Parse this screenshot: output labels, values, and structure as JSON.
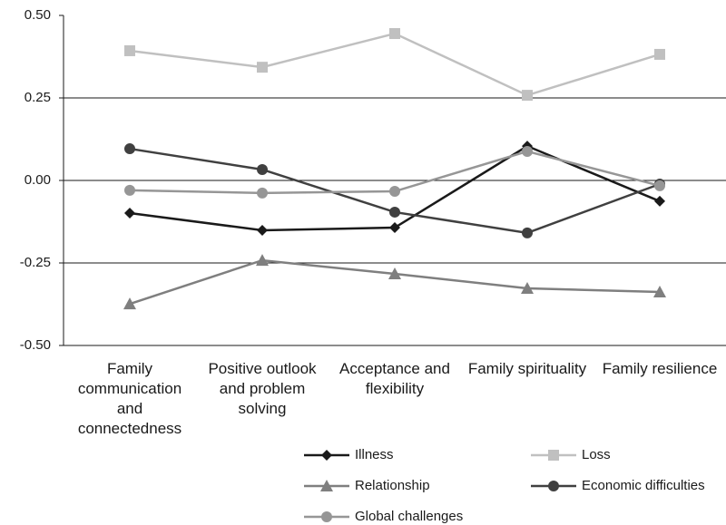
{
  "chart_data": {
    "type": "line",
    "categories": [
      "Family communication and connectedness",
      "Positive outlook and problem solving",
      "Acceptance and flexibility",
      "Family spirituality",
      "Family resilience"
    ],
    "series": [
      {
        "name": "Illness",
        "color": "#1a1a1a",
        "marker": "diamond",
        "values": [
          -0.099,
          -0.151,
          -0.143,
          0.104,
          -0.063
        ]
      },
      {
        "name": "Loss",
        "color": "#c0c0c0",
        "marker": "square",
        "values": [
          0.393,
          0.343,
          0.445,
          0.258,
          0.382
        ]
      },
      {
        "name": "Relationship",
        "color": "#7f7f7f",
        "marker": "triangle",
        "values": [
          -0.374,
          -0.242,
          -0.283,
          -0.327,
          -0.338
        ]
      },
      {
        "name": "Economic difficulties",
        "color": "#404040",
        "marker": "circle",
        "values": [
          0.096,
          0.033,
          -0.096,
          -0.159,
          -0.011
        ]
      },
      {
        "name": "Global challenges",
        "color": "#969696",
        "marker": "circle",
        "values": [
          -0.03,
          -0.038,
          -0.033,
          0.088,
          -0.016
        ]
      }
    ],
    "ylim": [
      -0.5,
      0.5
    ],
    "yticks": [
      {
        "value": 0.5,
        "label": "0.50"
      },
      {
        "value": 0.25,
        "label": "0.25"
      },
      {
        "value": 0,
        "label": "0.00"
      },
      {
        "value": -0.25,
        "label": "-0.25"
      },
      {
        "value": -0.5,
        "label": "-0.50"
      }
    ],
    "grid": true
  }
}
